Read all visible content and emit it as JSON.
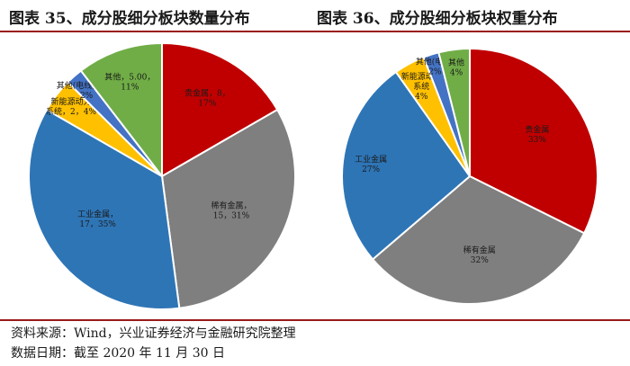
{
  "titles": {
    "left": "图表 35、成分股细分板块数量分布",
    "right": "图表 36、成分股细分板块权重分布"
  },
  "notes": {
    "source": "资料来源：Wind，兴业证券经济与金融研究院整理",
    "date": "数据日期：截至 2020 年 11 月 30 日"
  },
  "chart_data": [
    {
      "type": "pie",
      "title": "图表 35、成分股细分板块数量分布",
      "slices": [
        {
          "name": "贵金属",
          "value": 8,
          "percent": 17,
          "label_lines": [
            "贵金属，8，",
            "17%"
          ],
          "color": "#c00000"
        },
        {
          "name": "稀有金属",
          "value": 15,
          "percent": 31,
          "label_lines": [
            "稀有金属，",
            "15，31%"
          ],
          "color": "#7f7f7f"
        },
        {
          "name": "工业金属",
          "value": 17,
          "percent": 35,
          "label_lines": [
            "工业金属，",
            "17，35%"
          ],
          "color": "#2e75b6"
        },
        {
          "name": "新能源动力系统",
          "value": 2,
          "percent": 4,
          "label_lines": [
            "新能源动力",
            "系统，2，4%"
          ],
          "color": "#ffc000"
        },
        {
          "name": "其他(电线)",
          "value": 1,
          "percent": 2,
          "label_lines": [
            "其他(电线)，1，",
            "2%"
          ],
          "color": "#4472c4"
        },
        {
          "name": "其他",
          "value": 5,
          "percent": 11,
          "label_lines": [
            "其他，5.00，",
            "11%"
          ],
          "color": "#70ad47"
        }
      ]
    },
    {
      "type": "pie",
      "title": "图表 36、成分股细分板块权重分布",
      "slices": [
        {
          "name": "贵金属",
          "percent": 33,
          "label_lines": [
            "贵金属",
            "33%"
          ],
          "color": "#c00000"
        },
        {
          "name": "稀有金属",
          "percent": 32,
          "label_lines": [
            "稀有金属",
            "32%"
          ],
          "color": "#7f7f7f"
        },
        {
          "name": "工业金属",
          "percent": 27,
          "label_lines": [
            "工业金属",
            "27%"
          ],
          "color": "#2e75b6"
        },
        {
          "name": "新能源动力系统",
          "percent": 4,
          "label_lines": [
            "新能源动力",
            "系统",
            "4%"
          ],
          "color": "#ffc000"
        },
        {
          "name": "其他(电线)",
          "percent": 2,
          "label_lines": [
            "其他(电线)",
            "2%"
          ],
          "color": "#4472c4"
        },
        {
          "name": "其他",
          "percent": 4,
          "label_lines": [
            "其他",
            "4%"
          ],
          "color": "#70ad47"
        }
      ]
    }
  ]
}
